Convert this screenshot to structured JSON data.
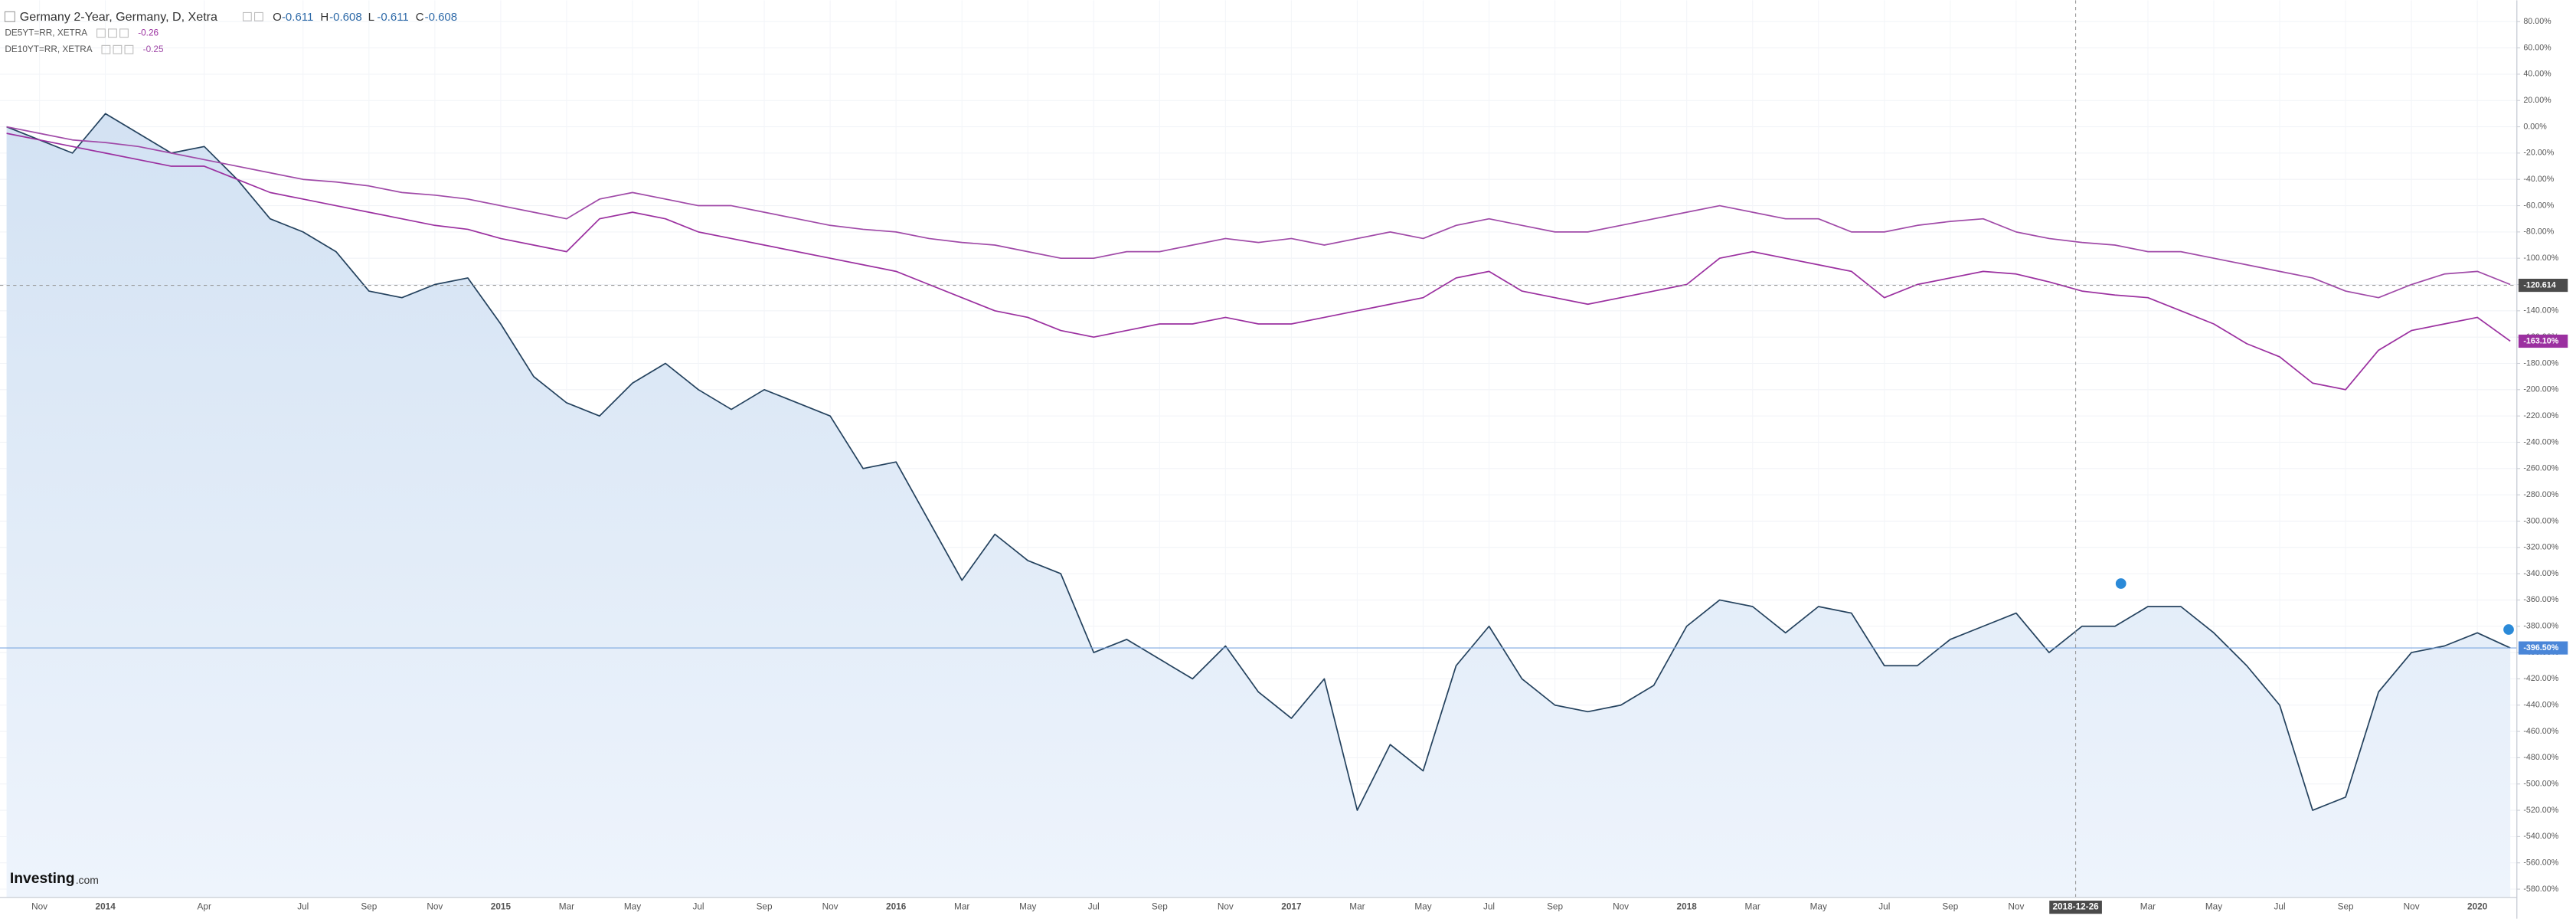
{
  "chart_data": {
    "type": "line",
    "ohlc": [
      {
        "label": "O",
        "value": -0.611
      },
      {
        "label": "H",
        "value": -0.608
      },
      {
        "label": "L",
        "value": -0.611
      },
      {
        "label": "C",
        "value": -0.608
      }
    ],
    "brand": {
      "name": "Investing",
      "suffix": ".com"
    },
    "x": [
      "2013-10",
      "2013-11",
      "2013-12",
      "2014-01",
      "2014-02",
      "2014-03",
      "2014-04",
      "2014-05",
      "2014-06",
      "2014-07",
      "2014-08",
      "2014-09",
      "2014-10",
      "2014-11",
      "2014-12",
      "2015-01",
      "2015-02",
      "2015-03",
      "2015-04",
      "2015-05",
      "2015-06",
      "2015-07",
      "2015-08",
      "2015-09",
      "2015-10",
      "2015-11",
      "2015-12",
      "2016-01",
      "2016-02",
      "2016-03",
      "2016-04",
      "2016-05",
      "2016-06",
      "2016-07",
      "2016-08",
      "2016-09",
      "2016-10",
      "2016-11",
      "2016-12",
      "2017-01",
      "2017-02",
      "2017-03",
      "2017-04",
      "2017-05",
      "2017-06",
      "2017-07",
      "2017-08",
      "2017-09",
      "2017-10",
      "2017-11",
      "2017-12",
      "2018-01",
      "2018-02",
      "2018-03",
      "2018-04",
      "2018-05",
      "2018-06",
      "2018-07",
      "2018-08",
      "2018-09",
      "2018-10",
      "2018-11",
      "2018-12",
      "2019-01",
      "2019-02",
      "2019-03",
      "2019-04",
      "2019-05",
      "2019-06",
      "2019-07",
      "2019-08",
      "2019-09",
      "2019-10",
      "2019-11",
      "2019-12",
      "2020-01",
      "2020-02"
    ],
    "series": [
      {
        "name": "Germany 2-Year, Germany, D, Xetra",
        "color": "#24425e",
        "area": true,
        "values": [
          0,
          -10,
          -20,
          10,
          -5,
          -20,
          -15,
          -40,
          -70,
          -80,
          -95,
          -125,
          -130,
          -120,
          -115,
          -150,
          -190,
          -210,
          -220,
          -195,
          -180,
          -200,
          -215,
          -200,
          -210,
          -220,
          -260,
          -255,
          -300,
          -345,
          -310,
          -330,
          -340,
          -400,
          -390,
          -405,
          -420,
          -395,
          -430,
          -450,
          -420,
          -520,
          -470,
          -490,
          -410,
          -380,
          -420,
          -440,
          -445,
          -440,
          -425,
          -380,
          -360,
          -365,
          -385,
          -365,
          -370,
          -410,
          -410,
          -390,
          -380,
          -370,
          -400,
          -380,
          -380,
          -365,
          -365,
          -385,
          -410,
          -440,
          -520,
          -510,
          -430,
          -400,
          -395,
          -385,
          -396.5
        ],
        "value_labels": {
          "76": "-396.50%"
        }
      },
      {
        "name": "DE5YT=RR, XETRA",
        "color": "#9b30a0",
        "last": -0.26,
        "values": [
          -5,
          -10,
          -15,
          -20,
          -25,
          -30,
          -30,
          -40,
          -50,
          -55,
          -60,
          -65,
          -70,
          -75,
          -78,
          -85,
          -90,
          -95,
          -70,
          -65,
          -70,
          -80,
          -85,
          -90,
          -95,
          -100,
          -105,
          -110,
          -120,
          -130,
          -140,
          -145,
          -155,
          -160,
          -155,
          -150,
          -150,
          -145,
          -150,
          -150,
          -145,
          -140,
          -135,
          -130,
          -115,
          -110,
          -125,
          -130,
          -135,
          -130,
          -125,
          -120,
          -100,
          -95,
          -100,
          -105,
          -110,
          -130,
          -120,
          -115,
          -110,
          -112,
          -118,
          -125,
          -128,
          -130,
          -140,
          -150,
          -165,
          -175,
          -195,
          -200,
          -170,
          -155,
          -150,
          -145,
          -163.1
        ],
        "value_labels": {
          "76": "-163.10%"
        }
      },
      {
        "name": "DE10YT=RR, XETRA",
        "color": "#a04aa8",
        "last": -0.25,
        "values": [
          0,
          -5,
          -10,
          -12,
          -15,
          -20,
          -25,
          -30,
          -35,
          -40,
          -42,
          -45,
          -50,
          -52,
          -55,
          -60,
          -65,
          -70,
          -55,
          -50,
          -55,
          -60,
          -60,
          -65,
          -70,
          -75,
          -78,
          -80,
          -85,
          -88,
          -90,
          -95,
          -100,
          -100,
          -95,
          -95,
          -90,
          -85,
          -88,
          -85,
          -90,
          -85,
          -80,
          -85,
          -75,
          -70,
          -75,
          -80,
          -80,
          -75,
          -70,
          -65,
          -60,
          -65,
          -70,
          -70,
          -80,
          -80,
          -75,
          -72,
          -70,
          -80,
          -85,
          -88,
          -90,
          -95,
          -95,
          -100,
          -105,
          -110,
          -115,
          -125,
          -130,
          -120,
          -112,
          -110,
          -120
        ]
      }
    ],
    "xlim": [
      "2013-10",
      "2020-02"
    ],
    "xticks": [
      {
        "value": "2013-11",
        "label": "Nov"
      },
      {
        "value": "2014-01",
        "label": "2014"
      },
      {
        "value": "2014-04",
        "label": "Apr"
      },
      {
        "value": "2014-07",
        "label": "Jul"
      },
      {
        "value": "2014-09",
        "label": "Sep"
      },
      {
        "value": "2014-11",
        "label": "Nov"
      },
      {
        "value": "2015-01",
        "label": "2015"
      },
      {
        "value": "2015-03",
        "label": "Mar"
      },
      {
        "value": "2015-05",
        "label": "May"
      },
      {
        "value": "2015-07",
        "label": "Jul"
      },
      {
        "value": "2015-09",
        "label": "Sep"
      },
      {
        "value": "2015-11",
        "label": "Nov"
      },
      {
        "value": "2016-01",
        "label": "2016"
      },
      {
        "value": "2016-03",
        "label": "Mar"
      },
      {
        "value": "2016-05",
        "label": "May"
      },
      {
        "value": "2016-07",
        "label": "Jul"
      },
      {
        "value": "2016-09",
        "label": "Sep"
      },
      {
        "value": "2016-11",
        "label": "Nov"
      },
      {
        "value": "2017-01",
        "label": "2017"
      },
      {
        "value": "2017-03",
        "label": "Mar"
      },
      {
        "value": "2017-05",
        "label": "May"
      },
      {
        "value": "2017-07",
        "label": "Jul"
      },
      {
        "value": "2017-09",
        "label": "Sep"
      },
      {
        "value": "2017-11",
        "label": "Nov"
      },
      {
        "value": "2018-01",
        "label": "2018"
      },
      {
        "value": "2018-03",
        "label": "Mar"
      },
      {
        "value": "2018-05",
        "label": "May"
      },
      {
        "value": "2018-07",
        "label": "Jul"
      },
      {
        "value": "2018-09",
        "label": "Sep"
      },
      {
        "value": "2018-11",
        "label": "Nov"
      },
      {
        "value": "2019-03",
        "label": "Mar"
      },
      {
        "value": "2019-05",
        "label": "May"
      },
      {
        "value": "2019-07",
        "label": "Jul"
      },
      {
        "value": "2019-09",
        "label": "Sep"
      },
      {
        "value": "2019-11",
        "label": "Nov"
      },
      {
        "value": "2020-01",
        "label": "2020"
      }
    ],
    "ylim": [
      -580,
      80
    ],
    "yticks": [
      {
        "value": 80,
        "label": "80.00%"
      },
      {
        "value": 60,
        "label": "60.00%"
      },
      {
        "value": 40,
        "label": "40.00%"
      },
      {
        "value": 20,
        "label": "20.00%"
      },
      {
        "value": 0,
        "label": "0.00%"
      },
      {
        "value": -20,
        "label": "-20.00%"
      },
      {
        "value": -40,
        "label": "-40.00%"
      },
      {
        "value": -60,
        "label": "-60.00%"
      },
      {
        "value": -80,
        "label": "-80.00%"
      },
      {
        "value": -100,
        "label": "-100.00%"
      },
      {
        "value": -120,
        "label": "-120.00%"
      },
      {
        "value": -140,
        "label": "-140.00%"
      },
      {
        "value": -160,
        "label": "-160.00%"
      },
      {
        "value": -180,
        "label": "-180.00%"
      },
      {
        "value": -200,
        "label": "-200.00%"
      },
      {
        "value": -220,
        "label": "-220.00%"
      },
      {
        "value": -240,
        "label": "-240.00%"
      },
      {
        "value": -260,
        "label": "-260.00%"
      },
      {
        "value": -280,
        "label": "-280.00%"
      },
      {
        "value": -300,
        "label": "-300.00%"
      },
      {
        "value": -320,
        "label": "-320.00%"
      },
      {
        "value": -340,
        "label": "-340.00%"
      },
      {
        "value": -360,
        "label": "-360.00%"
      },
      {
        "value": -380,
        "label": "-380.00%"
      },
      {
        "value": -400,
        "label": "-400.00%"
      },
      {
        "value": -420,
        "label": "-420.00%"
      },
      {
        "value": -440,
        "label": "-440.00%"
      },
      {
        "value": -460,
        "label": "-460.00%"
      },
      {
        "value": -480,
        "label": "-480.00%"
      },
      {
        "value": -500,
        "label": "-500.00%"
      },
      {
        "value": -520,
        "label": "-520.00%"
      },
      {
        "value": -540,
        "label": "-540.00%"
      },
      {
        "value": -560,
        "label": "-560.00%"
      },
      {
        "value": -580,
        "label": "-580.00%"
      }
    ],
    "grid": true,
    "crosshair": {
      "x": "2018-12-26",
      "y": -120.614
    }
  }
}
